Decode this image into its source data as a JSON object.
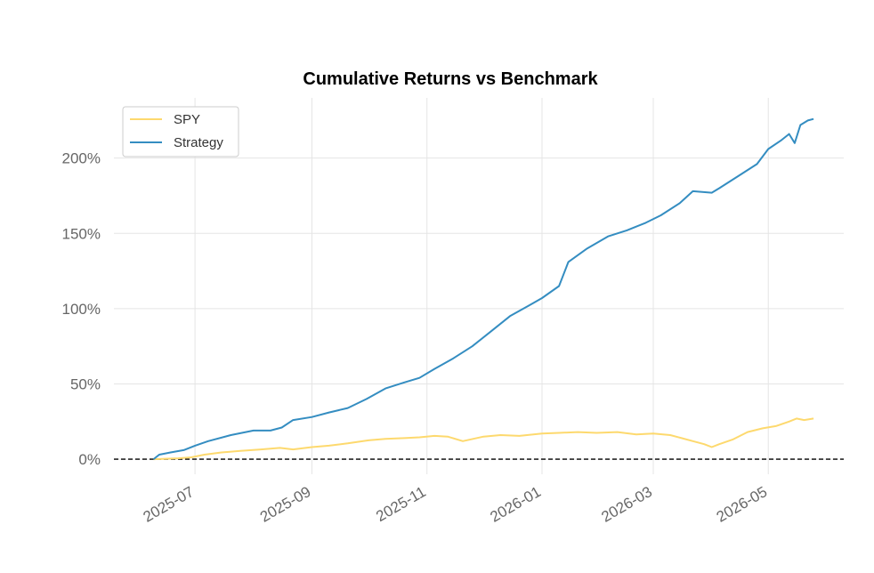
{
  "chart_data": {
    "type": "line",
    "title": "Cumulative Returns vs Benchmark",
    "xlabel": "",
    "ylabel": "",
    "y_unit": "%",
    "x_ticks": [
      "2025-07",
      "2025-09",
      "2025-11",
      "2026-01",
      "2026-03",
      "2026-05"
    ],
    "y_ticks": [
      0,
      50,
      100,
      150,
      200
    ],
    "y_tick_labels": [
      "0%",
      "50%",
      "100%",
      "150%",
      "200%"
    ],
    "xlim": [
      "2025-05-19",
      "2026-06-10"
    ],
    "ylim": [
      -10,
      240
    ],
    "grid": true,
    "legend_position": "top-left",
    "reference_line": {
      "y": 0,
      "style": "dashed",
      "color": "#000000"
    },
    "series": [
      {
        "name": "SPY",
        "color": "#fdd96e",
        "points": [
          [
            "2025-06-09",
            0
          ],
          [
            "2025-06-15",
            0.3
          ],
          [
            "2025-06-22",
            0.6
          ],
          [
            "2025-06-29",
            1.2
          ],
          [
            "2025-07-06",
            3.0
          ],
          [
            "2025-07-15",
            4.5
          ],
          [
            "2025-07-25",
            5.5
          ],
          [
            "2025-08-05",
            6.5
          ],
          [
            "2025-08-15",
            7.5
          ],
          [
            "2025-08-22",
            6.5
          ],
          [
            "2025-09-01",
            8.0
          ],
          [
            "2025-09-10",
            9.0
          ],
          [
            "2025-09-20",
            10.5
          ],
          [
            "2025-10-01",
            12.5
          ],
          [
            "2025-10-10",
            13.5
          ],
          [
            "2025-10-20",
            14.0
          ],
          [
            "2025-10-28",
            14.5
          ],
          [
            "2025-11-05",
            15.5
          ],
          [
            "2025-11-12",
            15.0
          ],
          [
            "2025-11-20",
            12.0
          ],
          [
            "2025-12-01",
            15.0
          ],
          [
            "2025-12-10",
            16.0
          ],
          [
            "2025-12-20",
            15.5
          ],
          [
            "2026-01-01",
            17.0
          ],
          [
            "2026-01-10",
            17.5
          ],
          [
            "2026-01-20",
            18.0
          ],
          [
            "2026-01-30",
            17.5
          ],
          [
            "2026-02-10",
            18.0
          ],
          [
            "2026-02-20",
            16.5
          ],
          [
            "2026-03-01",
            17.0
          ],
          [
            "2026-03-10",
            16.0
          ],
          [
            "2026-03-16",
            14.0
          ],
          [
            "2026-03-22",
            12.0
          ],
          [
            "2026-03-28",
            10.0
          ],
          [
            "2026-04-01",
            8.0
          ],
          [
            "2026-04-05",
            10.0
          ],
          [
            "2026-04-12",
            13.0
          ],
          [
            "2026-04-20",
            18.0
          ],
          [
            "2026-04-28",
            20.5
          ],
          [
            "2026-05-05",
            22.0
          ],
          [
            "2026-05-12",
            25.0
          ],
          [
            "2026-05-16",
            27.0
          ],
          [
            "2026-05-20",
            26.0
          ],
          [
            "2026-05-25",
            27.0
          ]
        ]
      },
      {
        "name": "Strategy",
        "color": "#348dc1",
        "points": [
          [
            "2025-06-09",
            0
          ],
          [
            "2025-06-12",
            3.0
          ],
          [
            "2025-06-18",
            4.5
          ],
          [
            "2025-06-25",
            6.0
          ],
          [
            "2025-07-01",
            9.0
          ],
          [
            "2025-07-08",
            12.0
          ],
          [
            "2025-07-20",
            16.0
          ],
          [
            "2025-08-01",
            19.0
          ],
          [
            "2025-08-10",
            19.0
          ],
          [
            "2025-08-16",
            21.0
          ],
          [
            "2025-08-22",
            26.0
          ],
          [
            "2025-09-01",
            28.0
          ],
          [
            "2025-09-10",
            31.0
          ],
          [
            "2025-09-20",
            34.0
          ],
          [
            "2025-09-30",
            40.0
          ],
          [
            "2025-10-10",
            47.0
          ],
          [
            "2025-10-20",
            51.0
          ],
          [
            "2025-10-28",
            54.0
          ],
          [
            "2025-11-05",
            60.0
          ],
          [
            "2025-11-15",
            67.0
          ],
          [
            "2025-11-25",
            75.0
          ],
          [
            "2025-12-05",
            85.0
          ],
          [
            "2025-12-15",
            95.0
          ],
          [
            "2025-12-25",
            102.0
          ],
          [
            "2026-01-01",
            107.0
          ],
          [
            "2026-01-10",
            115.0
          ],
          [
            "2026-01-15",
            131.0
          ],
          [
            "2026-01-25",
            140.0
          ],
          [
            "2026-02-05",
            148.0
          ],
          [
            "2026-02-15",
            152.0
          ],
          [
            "2026-02-25",
            157.0
          ],
          [
            "2026-03-05",
            162.0
          ],
          [
            "2026-03-15",
            170.0
          ],
          [
            "2026-03-22",
            178.0
          ],
          [
            "2026-04-01",
            177.0
          ],
          [
            "2026-04-05",
            180.0
          ],
          [
            "2026-04-15",
            188.0
          ],
          [
            "2026-04-25",
            196.0
          ],
          [
            "2026-05-01",
            206.0
          ],
          [
            "2026-05-08",
            212.0
          ],
          [
            "2026-05-12",
            216.0
          ],
          [
            "2026-05-15",
            210.0
          ],
          [
            "2026-05-18",
            222.0
          ],
          [
            "2026-05-22",
            225.0
          ],
          [
            "2026-05-25",
            226.0
          ]
        ]
      }
    ]
  }
}
